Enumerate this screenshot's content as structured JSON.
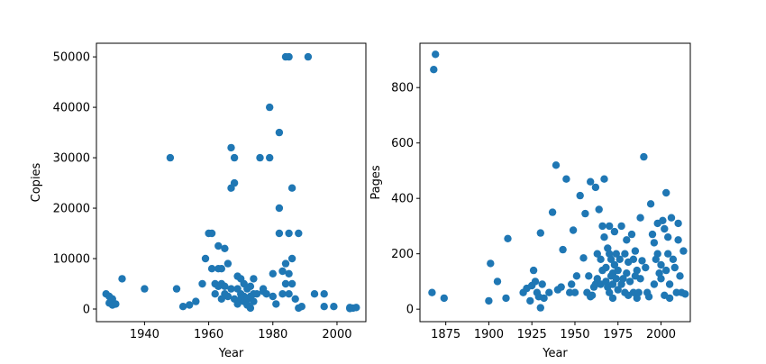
{
  "style": {
    "marker_color": "#1f77b4",
    "axis_color": "#000000",
    "background": "#ffffff"
  },
  "chart_data": [
    {
      "type": "scatter",
      "title": "",
      "xlabel": "Year",
      "ylabel": "Copies",
      "xlim": [
        1925,
        2009
      ],
      "ylim": [
        -2500,
        52700
      ],
      "xticks": [
        1940,
        1960,
        1980,
        2000
      ],
      "yticks": [
        0,
        10000,
        20000,
        30000,
        40000,
        50000
      ],
      "grid": false,
      "legend": "none",
      "series": [
        {
          "x": [
            1928,
            1929,
            1929,
            1930,
            1930,
            1931,
            1933,
            1940,
            1948,
            1950,
            1952,
            1954,
            1956,
            1958,
            1959,
            1960,
            1961,
            1961,
            1962,
            1962,
            1963,
            1963,
            1963,
            1964,
            1964,
            1964,
            1965,
            1965,
            1965,
            1966,
            1966,
            1967,
            1967,
            1967,
            1968,
            1968,
            1968,
            1969,
            1969,
            1969,
            1970,
            1970,
            1970,
            1971,
            1971,
            1971,
            1972,
            1972,
            1972,
            1973,
            1973,
            1973,
            1974,
            1974,
            1974,
            1975,
            1976,
            1977,
            1977,
            1978,
            1979,
            1979,
            1980,
            1980,
            1981,
            1982,
            1982,
            1982,
            1983,
            1983,
            1984,
            1984,
            1984,
            1985,
            1985,
            1985,
            1985,
            1986,
            1986,
            1986,
            1987,
            1988,
            1988,
            1989,
            1991,
            1993,
            1996,
            1996,
            1999,
            2004,
            2004,
            2005,
            2006
          ],
          "y": [
            3000,
            2500,
            1200,
            2000,
            800,
            1000,
            6000,
            4000,
            30000,
            4000,
            500,
            800,
            1500,
            5000,
            10000,
            15000,
            8000,
            15000,
            3000,
            5000,
            12500,
            8000,
            4500,
            2000,
            8000,
            5000,
            12000,
            3000,
            4500,
            9000,
            2500,
            32000,
            24000,
            4000,
            30000,
            25000,
            2000,
            6500,
            4000,
            1000,
            6000,
            3000,
            2000,
            5000,
            2500,
            1500,
            4000,
            2000,
            800,
            4500,
            2500,
            200,
            6000,
            3000,
            1500,
            3000,
            30000,
            3500,
            4000,
            3000,
            30000,
            40000,
            7000,
            2500,
            1000,
            35000,
            20000,
            15000,
            7500,
            3000,
            50000,
            9000,
            5000,
            50000,
            15000,
            7000,
            3000,
            24000,
            10000,
            5000,
            2000,
            15000,
            200,
            500,
            50000,
            3000,
            3000,
            500,
            500,
            300,
            100,
            200,
            300
          ]
        }
      ]
    },
    {
      "type": "scatter",
      "title": "",
      "xlabel": "Year",
      "ylabel": "Pages",
      "xlim": [
        1860,
        2017
      ],
      "ylim": [
        -45,
        960
      ],
      "xticks": [
        1875,
        1900,
        1925,
        1950,
        1975,
        2000
      ],
      "yticks": [
        0,
        200,
        400,
        600,
        800
      ],
      "grid": false,
      "legend": "none",
      "series": [
        {
          "x": [
            1867,
            1868,
            1869,
            1874,
            1900,
            1901,
            1905,
            1910,
            1911,
            1920,
            1922,
            1924,
            1925,
            1926,
            1927,
            1928,
            1929,
            1930,
            1930,
            1931,
            1932,
            1935,
            1937,
            1939,
            1940,
            1942,
            1943,
            1945,
            1947,
            1948,
            1949,
            1950,
            1951,
            1953,
            1955,
            1956,
            1957,
            1958,
            1959,
            1959,
            1960,
            1961,
            1962,
            1962,
            1963,
            1963,
            1964,
            1965,
            1965,
            1966,
            1966,
            1967,
            1967,
            1968,
            1968,
            1969,
            1969,
            1970,
            1970,
            1970,
            1971,
            1971,
            1972,
            1972,
            1972,
            1973,
            1973,
            1974,
            1974,
            1975,
            1975,
            1976,
            1977,
            1977,
            1978,
            1979,
            1979,
            1980,
            1980,
            1981,
            1981,
            1982,
            1983,
            1984,
            1984,
            1985,
            1985,
            1986,
            1986,
            1987,
            1988,
            1988,
            1989,
            1990,
            1991,
            1992,
            1993,
            1994,
            1995,
            1996,
            1996,
            1997,
            1998,
            1998,
            1999,
            2000,
            2000,
            2001,
            2002,
            2002,
            2003,
            2003,
            2004,
            2004,
            2005,
            2005,
            2006,
            2007,
            2008,
            2009,
            2010,
            2010,
            2011,
            2012,
            2013,
            2014
          ],
          "y": [
            60,
            865,
            920,
            40,
            30,
            165,
            100,
            40,
            255,
            60,
            75,
            30,
            85,
            140,
            100,
            60,
            45,
            5,
            275,
            90,
            40,
            60,
            350,
            520,
            70,
            80,
            215,
            470,
            60,
            90,
            285,
            60,
            120,
            410,
            185,
            345,
            60,
            120,
            45,
            460,
            50,
            80,
            440,
            90,
            200,
            110,
            360,
            180,
            90,
            300,
            140,
            470,
            260,
            150,
            100,
            80,
            220,
            300,
            200,
            60,
            180,
            120,
            40,
            130,
            90,
            280,
            160,
            200,
            110,
            140,
            70,
            180,
            300,
            90,
            110,
            200,
            60,
            250,
            130,
            170,
            50,
            100,
            270,
            180,
            60,
            210,
            120,
            140,
            40,
            60,
            330,
            110,
            175,
            550,
            150,
            60,
            45,
            380,
            270,
            240,
            90,
            180,
            200,
            310,
            130,
            160,
            110,
            320,
            50,
            290,
            140,
            420,
            260,
            200,
            40,
            90,
            330,
            180,
            150,
            60,
            310,
            250,
            120,
            60,
            210,
            55
          ]
        }
      ]
    }
  ]
}
